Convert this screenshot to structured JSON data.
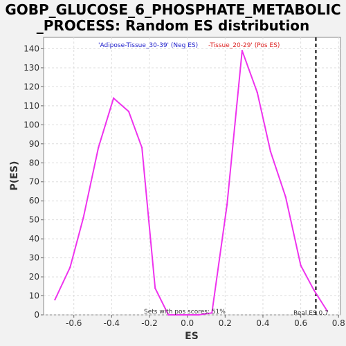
{
  "chart_data": {
    "type": "line",
    "title_lines": [
      "GOBP_GLUCOSE_6_PHOSPHATE_METABOLIC",
      "_PROCESS: Random ES distribution"
    ],
    "xlabel": "ES",
    "ylabel": "P(ES)",
    "xlim": [
      -0.76,
      0.81
    ],
    "ylim": [
      0,
      146
    ],
    "x_ticks": [
      -0.6,
      -0.4,
      -0.2,
      0.0,
      0.2,
      0.4,
      0.6,
      0.8
    ],
    "x_tick_labels": [
      "-0.6",
      "-0.4",
      "-0.2",
      "0.0",
      "0.2",
      "0.4",
      "0.6",
      "0.8"
    ],
    "y_ticks": [
      0,
      10,
      20,
      30,
      40,
      50,
      60,
      70,
      80,
      90,
      100,
      110,
      120,
      130,
      140
    ],
    "y_tick_labels": [
      "0",
      "10",
      "20",
      "30",
      "40",
      "50",
      "60",
      "70",
      "80",
      "90",
      "100",
      "110",
      "120",
      "130",
      "140"
    ],
    "grid": true,
    "series": [
      {
        "color": "#ee33ee",
        "x": [
          -0.7,
          -0.62,
          -0.55,
          -0.47,
          -0.39,
          -0.31,
          -0.24,
          -0.17,
          -0.1,
          -0.02,
          0.06,
          0.13,
          0.21,
          0.29,
          0.37,
          0.44,
          0.52,
          0.6,
          0.67,
          0.74
        ],
        "y": [
          8,
          25,
          51,
          88,
          114,
          107,
          88,
          14,
          0,
          0,
          0,
          1,
          58,
          139,
          117,
          86,
          62,
          26,
          13,
          2
        ]
      }
    ],
    "real_es": 0.68,
    "legend_neg": "'Adipose-Tissue_30-39' (Neg ES)",
    "legend_pos": "-Tissue_20-29' (Pos ES)",
    "legend_neg_color": "#2222cc",
    "legend_pos_color": "#dd2222",
    "annotation_pos_scores": "Sets with pos scores: 51%",
    "annotation_real_es": "Real ES 0.7"
  }
}
